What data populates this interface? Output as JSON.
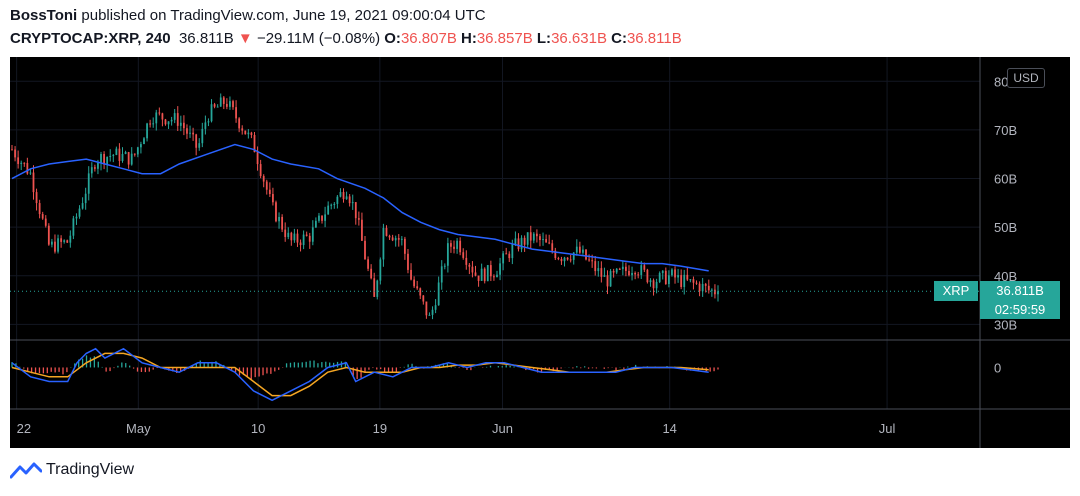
{
  "header": {
    "author": "BossToni",
    "published_text": " published on TradingView.com, June 19, 2021 09:00:04 UTC",
    "symbol_interval": "CRYPTOCAP:XRP, 240",
    "last_value": "36.811B",
    "change_arrow": "▼",
    "change": "−29.11M (−0.08%)",
    "o_label": "O:",
    "o_value": "36.807B",
    "h_label": "H:",
    "h_value": "36.857B",
    "l_label": "L:",
    "l_value": "36.631B",
    "c_label": "C:",
    "c_value": "36.811B"
  },
  "currency_button": "USD",
  "price_tag": {
    "symbol": "XRP",
    "price": "36.811B",
    "countdown": "02:59:59"
  },
  "brand": {
    "name": "TradingView",
    "logo_icon": "tradingview-logo-icon"
  },
  "colors": {
    "up": "#26a69a",
    "down": "#ef5350",
    "ma": "#2962ff",
    "signal": "#f5a623",
    "macd": "#2962ff",
    "background": "#000000"
  },
  "chart_data": {
    "type": "candlestick",
    "value_unit": "B",
    "y_ticks": [
      "80B",
      "70B",
      "60B",
      "50B",
      "40B",
      "30B"
    ],
    "y_range": [
      27,
      85
    ],
    "x_ticks": [
      "22",
      "May",
      "10",
      "19",
      "Jun",
      "14",
      "Jul"
    ],
    "close_path": [
      [
        0,
        66
      ],
      [
        2,
        61
      ],
      [
        4,
        46
      ],
      [
        6,
        47
      ],
      [
        8,
        58
      ],
      [
        9,
        64
      ],
      [
        11,
        65
      ],
      [
        13,
        64
      ],
      [
        15,
        73
      ],
      [
        18,
        72
      ],
      [
        20,
        66
      ],
      [
        21,
        73
      ],
      [
        23,
        76
      ],
      [
        24,
        73
      ],
      [
        26,
        67
      ],
      [
        28,
        54
      ],
      [
        30,
        47
      ],
      [
        32,
        48
      ],
      [
        34,
        54
      ],
      [
        36,
        58
      ],
      [
        37,
        53
      ],
      [
        39,
        35
      ],
      [
        40,
        50
      ],
      [
        42,
        47
      ],
      [
        43,
        39
      ],
      [
        45,
        31
      ],
      [
        47,
        46
      ],
      [
        48,
        47
      ],
      [
        50,
        40
      ],
      [
        52,
        41
      ],
      [
        54,
        46
      ],
      [
        56,
        48
      ],
      [
        57,
        47
      ],
      [
        59,
        44
      ],
      [
        61,
        45
      ],
      [
        63,
        41
      ],
      [
        64,
        39
      ],
      [
        66,
        41
      ],
      [
        67,
        42
      ],
      [
        69,
        39
      ],
      [
        71,
        40
      ],
      [
        72,
        39
      ],
      [
        74,
        38
      ],
      [
        75,
        37
      ],
      [
        76,
        36.8
      ]
    ],
    "moving_average": [
      [
        0,
        60
      ],
      [
        2,
        62
      ],
      [
        4,
        63
      ],
      [
        6,
        63.5
      ],
      [
        8,
        64
      ],
      [
        10,
        63
      ],
      [
        12,
        62
      ],
      [
        14,
        61
      ],
      [
        16,
        61
      ],
      [
        18,
        63
      ],
      [
        21,
        65
      ],
      [
        24,
        67
      ],
      [
        26,
        66
      ],
      [
        28,
        64
      ],
      [
        30,
        63
      ],
      [
        33,
        62
      ],
      [
        35,
        60
      ],
      [
        38,
        58
      ],
      [
        40,
        56
      ],
      [
        42,
        53
      ],
      [
        44,
        51
      ],
      [
        46,
        49.5
      ],
      [
        48,
        48.5
      ],
      [
        50,
        48
      ],
      [
        52,
        47.5
      ],
      [
        54,
        46.5
      ],
      [
        56,
        45.5
      ],
      [
        58,
        45
      ],
      [
        60,
        44.5
      ],
      [
        62,
        44
      ],
      [
        64,
        43.5
      ],
      [
        66,
        43
      ],
      [
        68,
        42.5
      ],
      [
        70,
        42.5
      ],
      [
        72,
        42
      ],
      [
        75,
        41
      ]
    ],
    "last_price": 36.811,
    "oscillator": {
      "zero_label": "0",
      "macd": [
        [
          0,
          1
        ],
        [
          2,
          -2
        ],
        [
          4,
          -3
        ],
        [
          6,
          -3
        ],
        [
          7,
          1
        ],
        [
          8,
          3
        ],
        [
          9,
          4
        ],
        [
          10,
          2
        ],
        [
          12,
          4
        ],
        [
          14,
          1
        ],
        [
          16,
          0
        ],
        [
          18,
          -1
        ],
        [
          20,
          1
        ],
        [
          22,
          1
        ],
        [
          24,
          -1
        ],
        [
          26,
          -5
        ],
        [
          28,
          -7
        ],
        [
          30,
          -5
        ],
        [
          32,
          -3
        ],
        [
          34,
          0
        ],
        [
          36,
          1
        ],
        [
          37,
          -3
        ],
        [
          39,
          -1
        ],
        [
          41,
          -2
        ],
        [
          42,
          -1
        ],
        [
          43,
          0
        ],
        [
          45,
          0
        ],
        [
          47,
          1
        ],
        [
          49,
          0
        ],
        [
          51,
          1
        ],
        [
          53,
          1
        ],
        [
          55,
          0
        ],
        [
          57,
          -1
        ],
        [
          59,
          -1
        ],
        [
          61,
          -1
        ],
        [
          63,
          -1
        ],
        [
          65,
          -1
        ],
        [
          67,
          0
        ],
        [
          69,
          0
        ],
        [
          71,
          0
        ],
        [
          73,
          -0.5
        ],
        [
          75,
          -1
        ]
      ],
      "signal": [
        [
          0,
          0
        ],
        [
          2,
          -1
        ],
        [
          4,
          -2
        ],
        [
          6,
          -2
        ],
        [
          8,
          1
        ],
        [
          10,
          3
        ],
        [
          12,
          3
        ],
        [
          14,
          2
        ],
        [
          16,
          0
        ],
        [
          18,
          0
        ],
        [
          20,
          0
        ],
        [
          22,
          0
        ],
        [
          24,
          0
        ],
        [
          26,
          -3
        ],
        [
          28,
          -6
        ],
        [
          30,
          -6
        ],
        [
          32,
          -4
        ],
        [
          34,
          -1
        ],
        [
          36,
          0
        ],
        [
          38,
          -1
        ],
        [
          40,
          -1
        ],
        [
          42,
          -1
        ],
        [
          44,
          0
        ],
        [
          46,
          0
        ],
        [
          48,
          0.5
        ],
        [
          50,
          0.5
        ],
        [
          52,
          1
        ],
        [
          54,
          0.5
        ],
        [
          56,
          0
        ],
        [
          58,
          -0.5
        ],
        [
          60,
          -1
        ],
        [
          62,
          -1
        ],
        [
          64,
          -1
        ],
        [
          66,
          -0.5
        ],
        [
          68,
          0
        ],
        [
          70,
          0
        ],
        [
          72,
          0
        ],
        [
          75,
          -0.5
        ]
      ],
      "range": [
        -8,
        5
      ]
    }
  }
}
